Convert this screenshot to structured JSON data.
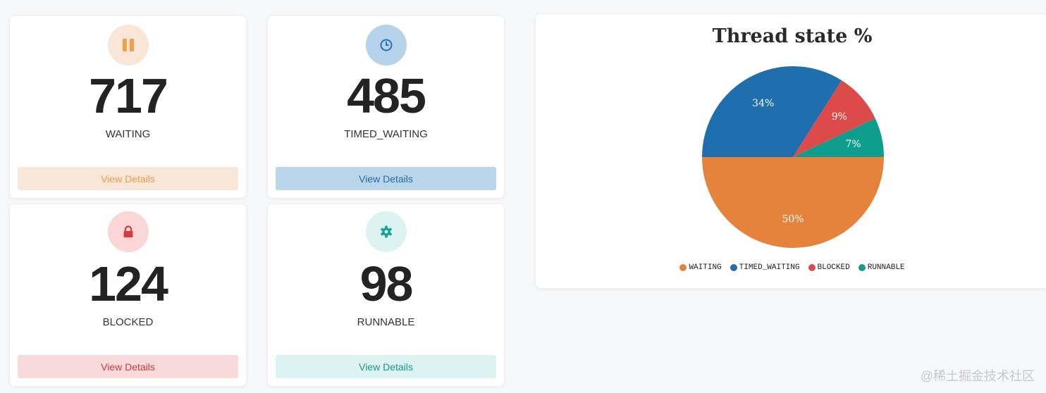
{
  "cards": [
    {
      "count": "717",
      "label": "WAITING",
      "button": "View Details",
      "icon": "pause-icon",
      "colors": {
        "circle": "#f9e6d7",
        "icon": "#f0a04c",
        "btn_bg": "#f8e6d8",
        "btn_text": "#ef9a4b"
      }
    },
    {
      "count": "485",
      "label": "TIMED_WAITING",
      "button": "View Details",
      "icon": "clock-icon",
      "colors": {
        "circle": "#b5d3ea",
        "icon": "#2a72b5",
        "btn_bg": "#bad6ea",
        "btn_text": "#2a6aa8"
      }
    },
    {
      "count": "124",
      "label": "BLOCKED",
      "button": "View Details",
      "icon": "lock-icon",
      "colors": {
        "circle": "#fad6d6",
        "icon": "#d83a3e",
        "btn_bg": "#f9dada",
        "btn_text": "#cc3a3e"
      }
    },
    {
      "count": "98",
      "label": "RUNNABLE",
      "button": "View Details",
      "icon": "gear-icon",
      "colors": {
        "circle": "#dcf3f2",
        "icon": "#16a396",
        "btn_bg": "#ddf3f1",
        "btn_text": "#18998d"
      }
    }
  ],
  "chart_data": {
    "type": "pie",
    "title": "Thread state %",
    "categories": [
      "WAITING",
      "TIMED_WAITING",
      "BLOCKED",
      "RUNNABLE"
    ],
    "values": [
      50,
      34,
      9,
      7
    ],
    "labels": [
      "50%",
      "34%",
      "9%",
      "7%"
    ],
    "colors": [
      "#e5833d",
      "#1f6fae",
      "#dc4b4a",
      "#0f9e8e"
    ],
    "legend_position": "bottom"
  },
  "watermark": "@稀土掘金技术社区"
}
